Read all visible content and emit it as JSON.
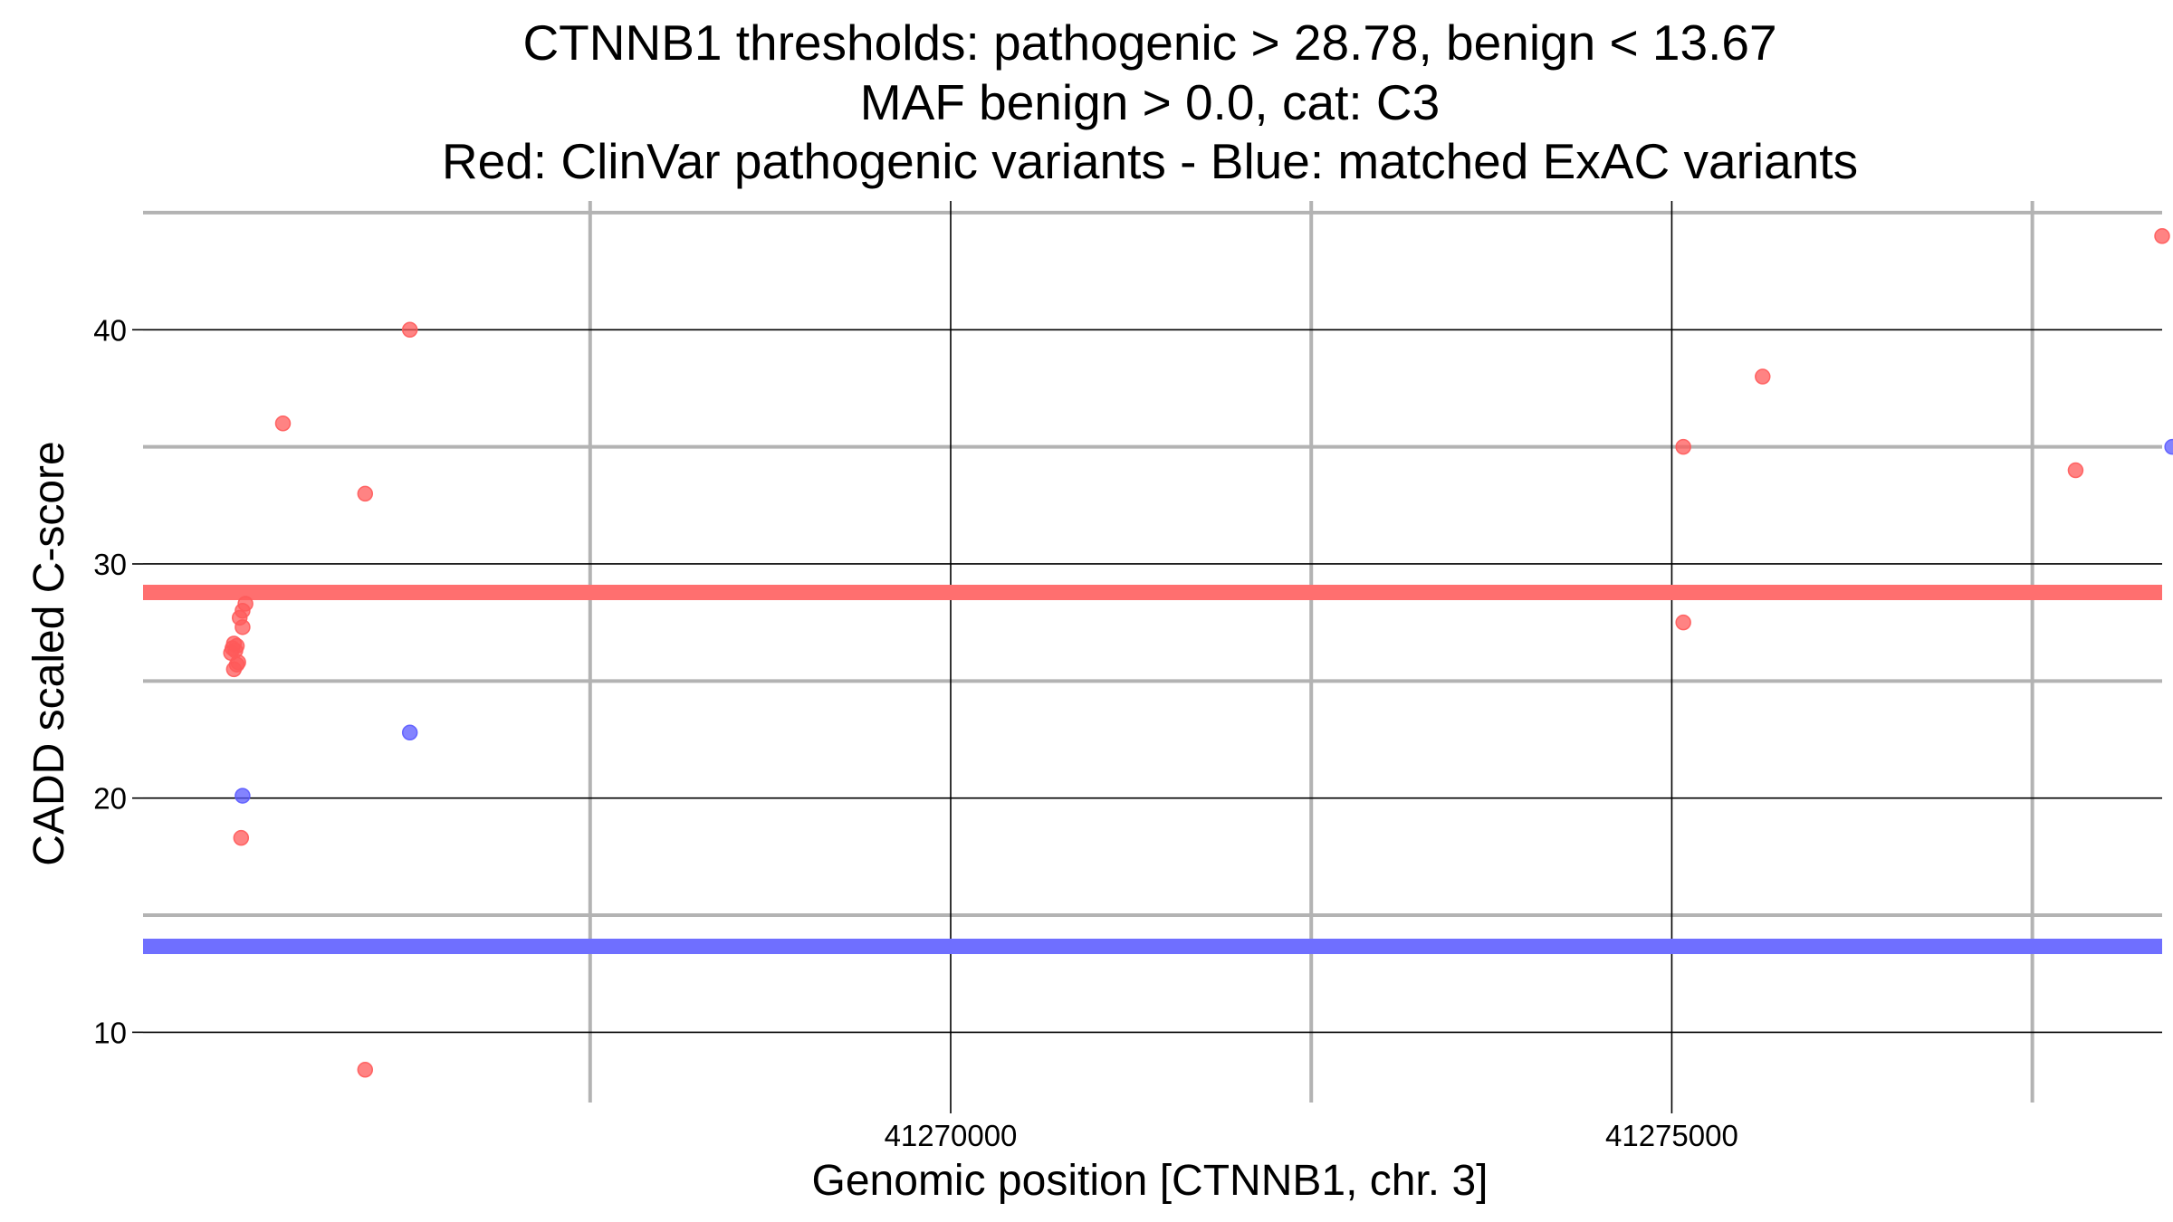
{
  "chart_data": {
    "type": "scatter",
    "title_lines": [
      "CTNNB1 thresholds: pathogenic > 28.78, benign < 13.67",
      "MAF benign > 0.0, cat: C3",
      "Red: ClinVar pathogenic variants - Blue: matched ExAC variants"
    ],
    "xlabel": "Genomic position [CTNNB1, chr. 3]",
    "ylabel": "CADD scaled C-score",
    "xlim": [
      41264400,
      41278400
    ],
    "ylim": [
      7,
      45.5
    ],
    "x_ticks": [
      41270000,
      41275000
    ],
    "x_tick_labels": [
      "41270000",
      "41275000"
    ],
    "x_minor_gridlines": [
      41267500,
      41272500,
      41277500
    ],
    "y_ticks": [
      10,
      20,
      30,
      40
    ],
    "y_tick_labels": [
      "10",
      "20",
      "30",
      "40"
    ],
    "y_minor_gridlines": [
      15,
      25,
      35,
      45
    ],
    "grid": true,
    "thresholds": [
      {
        "label": "pathogenic",
        "value": 28.78,
        "color": "#ff6f6f"
      },
      {
        "label": "benign",
        "value": 13.67,
        "color": "#6f6fff"
      }
    ],
    "series": [
      {
        "color": "#ff5a5a",
        "points": [
          [
            41265010,
            26.2
          ],
          [
            41265020,
            26.4
          ],
          [
            41265030,
            26.6
          ],
          [
            41265040,
            26.3
          ],
          [
            41265050,
            26.5
          ],
          [
            41265060,
            25.8
          ],
          [
            41265030,
            25.5
          ],
          [
            41265050,
            25.7
          ],
          [
            41265070,
            27.7
          ],
          [
            41265090,
            28.0
          ],
          [
            41265110,
            28.3
          ],
          [
            41265090,
            27.3
          ],
          [
            41265080,
            18.3
          ],
          [
            41265370,
            36.0
          ],
          [
            41265940,
            33.0
          ],
          [
            41265940,
            8.4
          ],
          [
            41266250,
            40.0
          ],
          [
            41275080,
            35.0
          ],
          [
            41275080,
            27.5
          ],
          [
            41275630,
            38.0
          ],
          [
            41277800,
            34.0
          ],
          [
            41278400,
            44.0
          ]
        ]
      },
      {
        "color": "#5a5aff",
        "points": [
          [
            41265090,
            20.1
          ],
          [
            41266250,
            22.8
          ],
          [
            41278470,
            35.0
          ]
        ]
      }
    ]
  }
}
